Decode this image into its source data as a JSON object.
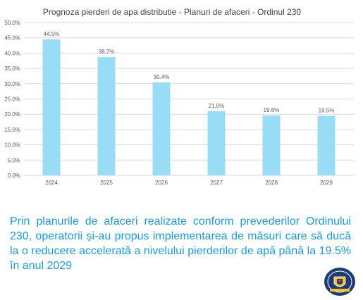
{
  "colors": {
    "bar": "#99dcf5",
    "text_accent": "#1a9ad6",
    "grid": "#d9d9d9",
    "axis_text": "#595959"
  },
  "chart_data": {
    "type": "bar",
    "title": "Prognoza pierderi de apa distributie - Planuri de afaceri - Ordinul 230",
    "categories": [
      "2024",
      "2025",
      "2026",
      "2027",
      "2028",
      "2029"
    ],
    "values": [
      44.5,
      38.7,
      30.4,
      21.0,
      19.6,
      19.5
    ],
    "value_labels": [
      "44.5%",
      "38.7%",
      "30.4%",
      "21.0%",
      "19.6%",
      "19.5%"
    ],
    "y_ticks": [
      "0.0%",
      "5.0%",
      "10.0%",
      "15.0%",
      "20.0%",
      "25.0%",
      "30.0%",
      "35.0%",
      "40.0%",
      "45.0%",
      "50.0%"
    ],
    "ylim": [
      0,
      50
    ],
    "xlabel": "",
    "ylabel": "",
    "grid": true,
    "legend": "none"
  },
  "body": {
    "paragraph": "Prin planurile de afaceri realizate conform prevederilor Ordinului 230, operatorii și-au propus implementarea de măsuri care să ducă la o reducere accelerată a nivelului pierderilor de apă până la 19.5% în anul 2029"
  },
  "logo": {
    "icon": "organization-emblem-icon"
  }
}
